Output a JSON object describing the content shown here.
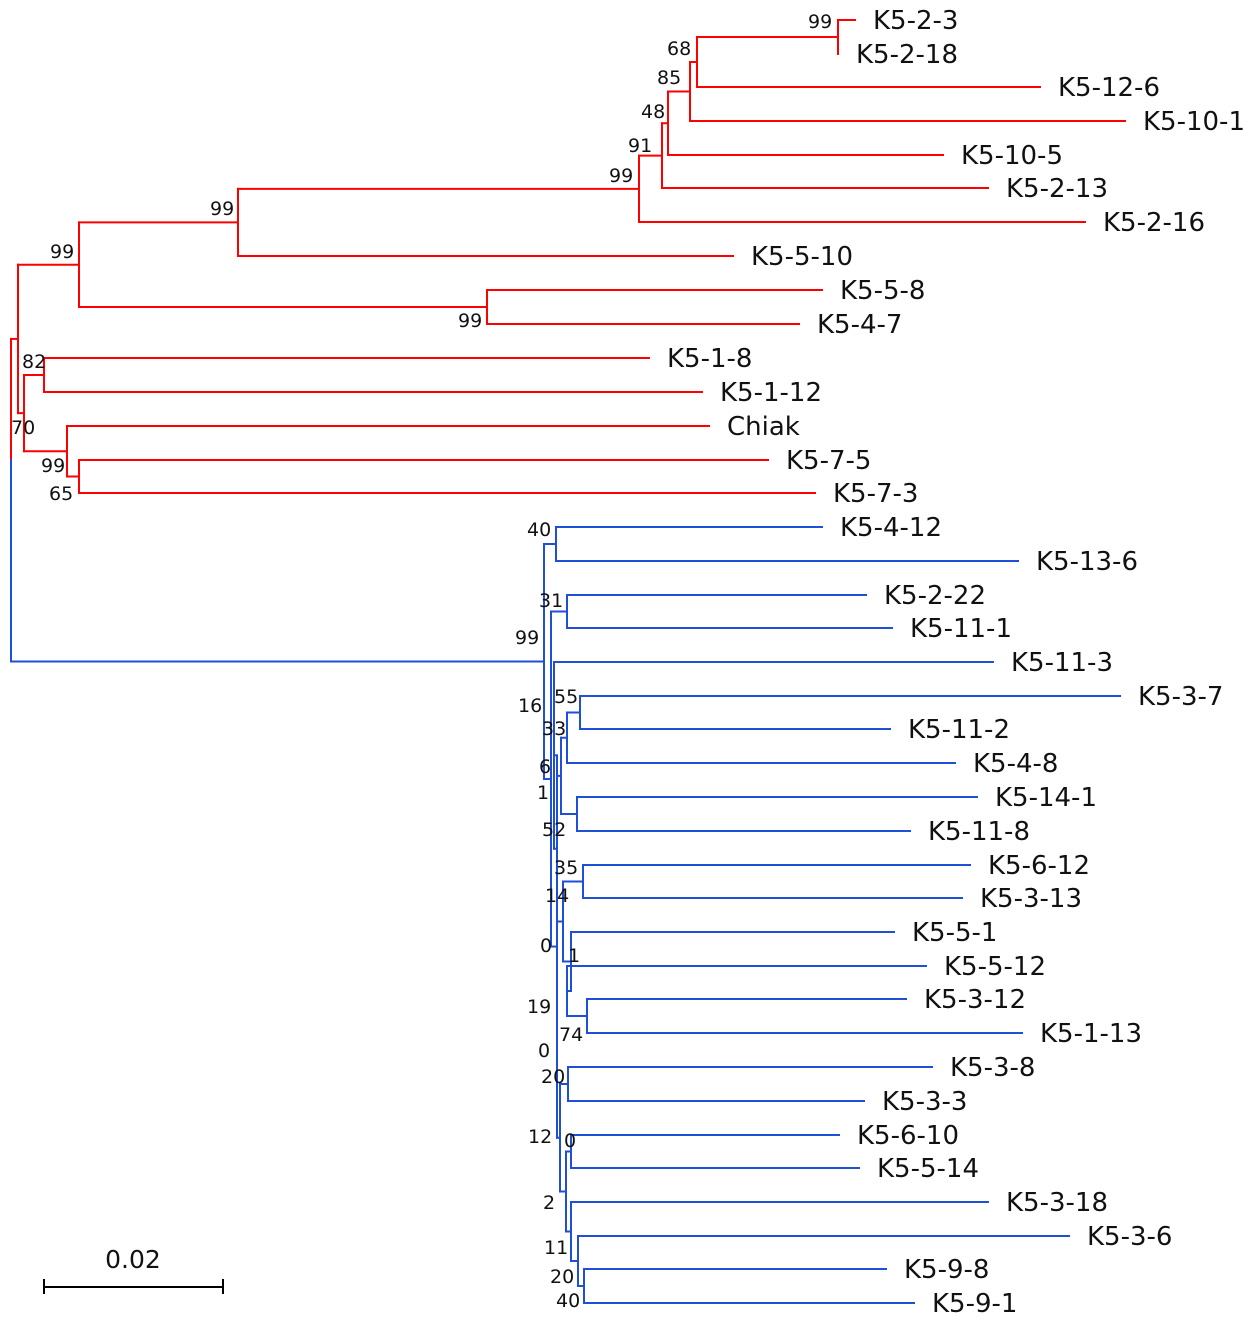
{
  "colors": {
    "clade_a": "#ff0000",
    "clade_b": "#1f4fd6",
    "scale": "#000000"
  },
  "scale_bar": {
    "label": "0.02"
  },
  "taxa": [
    {
      "label": "K5-2-3",
      "clade": "a"
    },
    {
      "label": "K5-2-18",
      "clade": "a"
    },
    {
      "label": "K5-12-6",
      "clade": "a"
    },
    {
      "label": "K5-10-1",
      "clade": "a"
    },
    {
      "label": "K5-10-5",
      "clade": "a"
    },
    {
      "label": "K5-2-13",
      "clade": "a"
    },
    {
      "label": "K5-2-16",
      "clade": "a"
    },
    {
      "label": "K5-5-10",
      "clade": "a"
    },
    {
      "label": "K5-5-8",
      "clade": "a"
    },
    {
      "label": "K5-4-7",
      "clade": "a"
    },
    {
      "label": "K5-1-8",
      "clade": "a"
    },
    {
      "label": "K5-1-12",
      "clade": "a"
    },
    {
      "label": "Chiak",
      "clade": "a"
    },
    {
      "label": "K5-7-5",
      "clade": "a"
    },
    {
      "label": "K5-7-3",
      "clade": "a"
    },
    {
      "label": "K5-4-12",
      "clade": "b"
    },
    {
      "label": "K5-13-6",
      "clade": "b"
    },
    {
      "label": "K5-2-22",
      "clade": "b"
    },
    {
      "label": "K5-11-1",
      "clade": "b"
    },
    {
      "label": "K5-11-3",
      "clade": "b"
    },
    {
      "label": "K5-3-7",
      "clade": "b"
    },
    {
      "label": "K5-11-2",
      "clade": "b"
    },
    {
      "label": "K5-4-8",
      "clade": "b"
    },
    {
      "label": "K5-14-1",
      "clade": "b"
    },
    {
      "label": "K5-11-8",
      "clade": "b"
    },
    {
      "label": "K5-6-12",
      "clade": "b"
    },
    {
      "label": "K5-3-13",
      "clade": "b"
    },
    {
      "label": "K5-5-1",
      "clade": "b"
    },
    {
      "label": "K5-5-12",
      "clade": "b"
    },
    {
      "label": "K5-3-12",
      "clade": "b"
    },
    {
      "label": "K5-1-13",
      "clade": "b"
    },
    {
      "label": "K5-3-8",
      "clade": "b"
    },
    {
      "label": "K5-3-3",
      "clade": "b"
    },
    {
      "label": "K5-6-10",
      "clade": "b"
    },
    {
      "label": "K5-5-14",
      "clade": "b"
    },
    {
      "label": "K5-3-18",
      "clade": "b"
    },
    {
      "label": "K5-3-6",
      "clade": "b"
    },
    {
      "label": "K5-9-8",
      "clade": "b"
    },
    {
      "label": "K5-9-1",
      "clade": "b"
    }
  ],
  "bootstrap": [
    "99",
    "68",
    "85",
    "48",
    "91",
    "99",
    "99",
    "99",
    "99",
    "82",
    "70",
    "99",
    "65",
    "40",
    "31",
    "99",
    "16",
    "55",
    "33",
    "6",
    "1",
    "52",
    "35",
    "14",
    "0",
    "1",
    "19",
    "74",
    "0",
    "20",
    "12",
    "0",
    "2",
    "11",
    "20",
    "40"
  ]
}
